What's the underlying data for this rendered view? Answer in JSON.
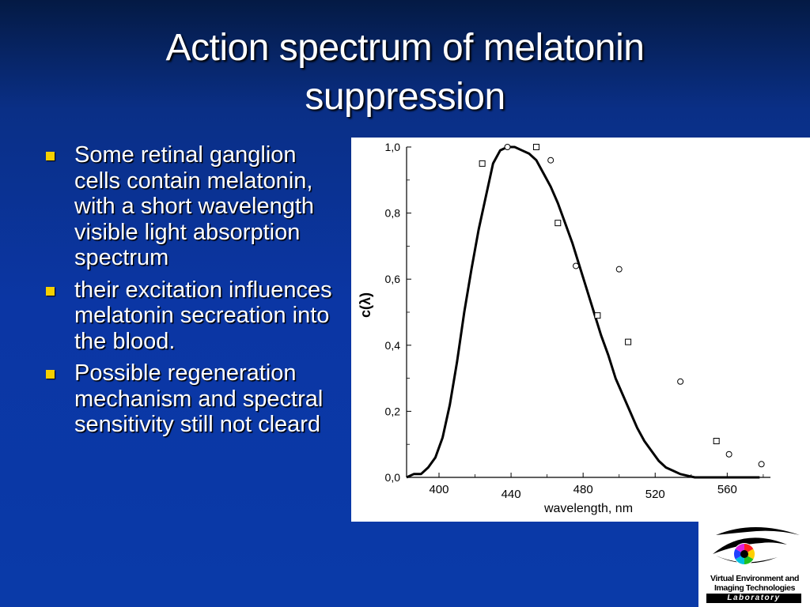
{
  "slide": {
    "title_line1": "Action spectrum of melatonin",
    "title_line2": "suppression"
  },
  "bullets": [
    "Some retinal ganglion cells contain melatonin, with a short wavelength visible light absorption spectrum",
    "their excitation influences melatonin secreation into the blood.",
    "Possible regeneration mechanism and spectral sensitivity still not cleard"
  ],
  "colors": {
    "bullet_marker": "#f5d000",
    "text": "#ffffff",
    "background_top": "#041a44",
    "background_main": "#0b36a4"
  },
  "logo": {
    "icon": "eye-icon",
    "line1": "Virtual Environment and",
    "line2": "Imaging Technologies",
    "line3": "Laboratory"
  },
  "chart_data": {
    "type": "line",
    "title": "",
    "xlabel": "wavelength, nm",
    "ylabel": "c(λ)",
    "xlim": [
      382,
      584
    ],
    "ylim": [
      0,
      1.0
    ],
    "x_tick_labels": [
      {
        "value": 400,
        "label": "400"
      },
      {
        "value": 440,
        "label": "440"
      },
      {
        "value": 480,
        "label": "480"
      },
      {
        "value": 520,
        "label": "520"
      },
      {
        "value": 560,
        "label": "560"
      }
    ],
    "y_tick_labels": [
      {
        "value": 0.0,
        "label": "0,0"
      },
      {
        "value": 0.2,
        "label": "0,2"
      },
      {
        "value": 0.4,
        "label": "0,4"
      },
      {
        "value": 0.6,
        "label": "0,6"
      },
      {
        "value": 0.8,
        "label": "0,8"
      },
      {
        "value": 1.0,
        "label": "1,0"
      }
    ],
    "grid": false,
    "series": [
      {
        "marker": "line",
        "x": [
          382,
          386,
          390,
          394,
          398,
          402,
          406,
          410,
          414,
          418,
          422,
          426,
          430,
          434,
          438,
          442,
          446,
          450,
          454,
          458,
          462,
          466,
          470,
          474,
          478,
          482,
          486,
          490,
          494,
          498,
          502,
          506,
          510,
          514,
          518,
          522,
          526,
          530,
          534,
          538,
          542,
          546,
          550,
          554,
          558,
          562,
          566,
          570,
          574,
          578
        ],
        "y": [
          0.0,
          0.01,
          0.01,
          0.03,
          0.06,
          0.12,
          0.22,
          0.35,
          0.5,
          0.63,
          0.75,
          0.85,
          0.95,
          0.99,
          1.0,
          1.0,
          0.99,
          0.98,
          0.96,
          0.92,
          0.88,
          0.83,
          0.77,
          0.71,
          0.64,
          0.57,
          0.5,
          0.43,
          0.37,
          0.3,
          0.25,
          0.2,
          0.15,
          0.11,
          0.08,
          0.05,
          0.03,
          0.02,
          0.01,
          0.005,
          0.0,
          0.0,
          0.0,
          0.0,
          0.0,
          0.0,
          0.0,
          0.0,
          0.0,
          0.0
        ]
      },
      {
        "marker": "square",
        "x": [
          424,
          454,
          466,
          488,
          505,
          554
        ],
        "y": [
          0.95,
          1.0,
          0.77,
          0.49,
          0.41,
          0.11
        ]
      },
      {
        "marker": "circle",
        "x": [
          438,
          462,
          476,
          500,
          534,
          561,
          579
        ],
        "y": [
          1.0,
          0.96,
          0.64,
          0.63,
          0.29,
          0.07,
          0.04
        ]
      }
    ]
  }
}
